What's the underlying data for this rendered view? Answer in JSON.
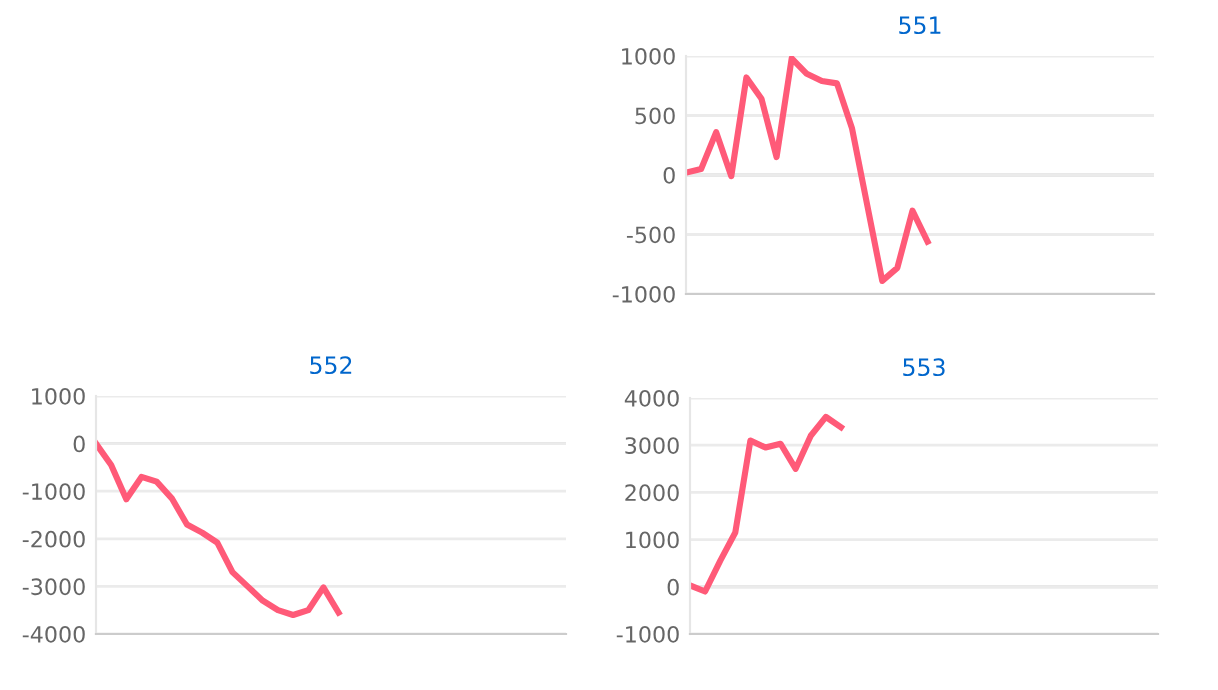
{
  "chart_data": [
    {
      "type": "line",
      "title": "551",
      "categories": [
        null,
        null,
        null,
        null,
        null,
        null,
        null,
        null,
        null,
        null,
        null,
        null,
        null,
        null,
        null,
        null,
        null,
        null,
        null,
        null,
        null,
        null,
        null,
        null,
        null,
        null,
        null,
        null,
        null,
        null,
        null,
        null
      ],
      "series": [
        {
          "color": "#ff5a78",
          "values": [
            20,
            50,
            360,
            -10,
            820,
            640,
            150,
            980,
            850,
            790,
            770,
            390,
            -250,
            -890,
            -780,
            -300,
            -560,
            null,
            null,
            null,
            null,
            null,
            null,
            null,
            null,
            null,
            null,
            null,
            null,
            null,
            null,
            null
          ]
        }
      ],
      "ylim": [
        -1000,
        1000
      ],
      "yticks": [
        -1000,
        -500,
        0,
        500,
        1000
      ],
      "grid": "y",
      "tick_labels": "y",
      "marker": "none",
      "line_style": "solid"
    },
    {
      "type": "line",
      "title": "552",
      "categories": [
        null,
        null,
        null,
        null,
        null,
        null,
        null,
        null,
        null,
        null,
        null,
        null,
        null,
        null,
        null,
        null,
        null,
        null,
        null,
        null,
        null,
        null,
        null,
        null,
        null,
        null,
        null,
        null,
        null,
        null,
        null,
        null
      ],
      "series": [
        {
          "color": "#ff5a78",
          "values": [
            0,
            -450,
            -1170,
            -700,
            -800,
            -1150,
            -1700,
            -1870,
            -2080,
            -2700,
            -3000,
            -3300,
            -3500,
            -3600,
            -3500,
            -3020,
            -3550,
            null,
            null,
            null,
            null,
            null,
            null,
            null,
            null,
            null,
            null,
            null,
            null,
            null,
            null,
            null
          ]
        }
      ],
      "ylim": [
        -4000,
        1000
      ],
      "yticks": [
        -4000,
        -3000,
        -2000,
        -1000,
        0,
        1000
      ],
      "grid": "y",
      "tick_labels": "y",
      "marker": "none",
      "line_style": "solid"
    },
    {
      "type": "line",
      "title": "553",
      "categories": [
        null,
        null,
        null,
        null,
        null,
        null,
        null,
        null,
        null,
        null,
        null,
        null,
        null,
        null,
        null,
        null,
        null,
        null,
        null,
        null,
        null,
        null,
        null,
        null,
        null,
        null,
        null,
        null,
        null,
        null,
        null,
        null
      ],
      "series": [
        {
          "color": "#ff5a78",
          "values": [
            30,
            -100,
            550,
            1150,
            3100,
            2950,
            3030,
            2500,
            3200,
            3600,
            3380,
            null,
            null,
            null,
            null,
            null,
            null,
            null,
            null,
            null,
            null,
            null,
            null,
            null,
            null,
            null,
            null,
            null,
            null,
            null,
            null,
            null
          ]
        }
      ],
      "ylim": [
        -1000,
        4000
      ],
      "yticks": [
        -1000,
        0,
        1000,
        2000,
        3000,
        4000
      ],
      "grid": "y",
      "tick_labels": "y",
      "marker": "none",
      "line_style": "solid"
    }
  ]
}
